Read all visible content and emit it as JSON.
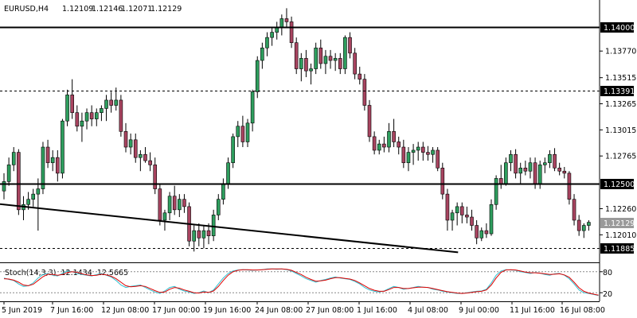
{
  "header": {
    "symbol": "EURUSD,H4",
    "open": "1.12109",
    "high": "1.12146",
    "low": "1.12071",
    "close": "1.12129"
  },
  "indicator": {
    "label": "Stoch(14,3,3)",
    "main": "12.1434",
    "signal": "12.5665",
    "levels": [
      "80",
      "20"
    ],
    "main_color": "#2fbfcf",
    "signal_color": "#e00000"
  },
  "price_scale": {
    "labels": [
      "1.13770",
      "1.13515",
      "1.13265",
      "1.13015",
      "1.12765",
      "1.12260",
      "1.12010"
    ]
  },
  "levels": {
    "solid": [
      {
        "label": "1.14000",
        "price": 1.14
      },
      {
        "label": "1.12500",
        "price": 1.125
      }
    ],
    "dashed": [
      {
        "label": "1.13391",
        "price": 1.13391
      },
      {
        "label": "1.11885",
        "price": 1.11885
      }
    ],
    "current": {
      "label": "1.12129",
      "price": 1.12129
    }
  },
  "time_axis": {
    "labels": [
      "5 Jun 2019",
      "7 Jun 16:00",
      "12 Jun 08:00",
      "17 Jun 00:00",
      "19 Jun 16:00",
      "24 Jun 08:00",
      "27 Jun 08:00",
      "1 Jul 16:00",
      "4 Jul 08:00",
      "9 Jul 00:00",
      "11 Jul 16:00",
      "16 Jul 08:00"
    ]
  },
  "colors": {
    "bull": "#2e9e5e",
    "bear": "#a84460"
  },
  "chart_data": {
    "type": "candlestick",
    "title": "EURUSD,H4",
    "ylim": [
      1.1183,
      1.1426
    ],
    "trendline": [
      [
        1.12304,
        0
      ],
      [
        1.1188,
        94
      ]
    ],
    "candles": [
      [
        1.1243,
        1.126,
        1.1235,
        1.1252
      ],
      [
        1.1252,
        1.1275,
        1.1248,
        1.1268
      ],
      [
        1.1268,
        1.1285,
        1.1262,
        1.128
      ],
      [
        1.128,
        1.1283,
        1.122,
        1.1225
      ],
      [
        1.1225,
        1.1238,
        1.1215,
        1.123
      ],
      [
        1.123,
        1.1242,
        1.1225,
        1.1235
      ],
      [
        1.1235,
        1.1245,
        1.1228,
        1.124
      ],
      [
        1.124,
        1.1255,
        1.1205,
        1.1245
      ],
      [
        1.1245,
        1.129,
        1.124,
        1.1285
      ],
      [
        1.1285,
        1.1292,
        1.1265,
        1.127
      ],
      [
        1.127,
        1.1282,
        1.1262,
        1.1275
      ],
      [
        1.1275,
        1.1282,
        1.1252,
        1.126
      ],
      [
        1.126,
        1.1312,
        1.1255,
        1.131
      ],
      [
        1.131,
        1.134,
        1.1305,
        1.1335
      ],
      [
        1.1335,
        1.135,
        1.1312,
        1.1318
      ],
      [
        1.1318,
        1.1325,
        1.13,
        1.1305
      ],
      [
        1.1305,
        1.1318,
        1.129,
        1.131
      ],
      [
        1.131,
        1.1322,
        1.1302,
        1.1318
      ],
      [
        1.1318,
        1.1325,
        1.1305,
        1.1312
      ],
      [
        1.1312,
        1.1322,
        1.1305,
        1.1318
      ],
      [
        1.1318,
        1.1325,
        1.131,
        1.1322
      ],
      [
        1.1322,
        1.1335,
        1.131,
        1.133
      ],
      [
        1.133,
        1.1338,
        1.1318,
        1.1325
      ],
      [
        1.1325,
        1.1342,
        1.132,
        1.133
      ],
      [
        1.133,
        1.1335,
        1.1295,
        1.13
      ],
      [
        1.13,
        1.1308,
        1.128,
        1.1285
      ],
      [
        1.1285,
        1.1298,
        1.1278,
        1.1292
      ],
      [
        1.1292,
        1.1298,
        1.127,
        1.1275
      ],
      [
        1.1275,
        1.1282,
        1.1262,
        1.1278
      ],
      [
        1.1278,
        1.1285,
        1.127,
        1.1272
      ],
      [
        1.1272,
        1.128,
        1.1262,
        1.1268
      ],
      [
        1.1268,
        1.1275,
        1.124,
        1.1245
      ],
      [
        1.1245,
        1.125,
        1.121,
        1.1215
      ],
      [
        1.1215,
        1.1225,
        1.1205,
        1.1222
      ],
      [
        1.1222,
        1.1242,
        1.1215,
        1.1238
      ],
      [
        1.1238,
        1.1248,
        1.122,
        1.1225
      ],
      [
        1.1225,
        1.124,
        1.1218,
        1.1235
      ],
      [
        1.1235,
        1.124,
        1.1222,
        1.1228
      ],
      [
        1.1228,
        1.1232,
        1.119,
        1.1195
      ],
      [
        1.1195,
        1.121,
        1.1185,
        1.1205
      ],
      [
        1.1205,
        1.1212,
        1.119,
        1.1198
      ],
      [
        1.1198,
        1.121,
        1.1188,
        1.1205
      ],
      [
        1.1205,
        1.1212,
        1.1192,
        1.12
      ],
      [
        1.12,
        1.1225,
        1.1195,
        1.122
      ],
      [
        1.122,
        1.124,
        1.1215,
        1.1235
      ],
      [
        1.1235,
        1.1255,
        1.123,
        1.125
      ],
      [
        1.125,
        1.1275,
        1.1245,
        1.127
      ],
      [
        1.127,
        1.1298,
        1.1265,
        1.1295
      ],
      [
        1.1295,
        1.131,
        1.1285,
        1.1305
      ],
      [
        1.1305,
        1.1315,
        1.1285,
        1.129
      ],
      [
        1.129,
        1.1312,
        1.1285,
        1.1308
      ],
      [
        1.1308,
        1.134,
        1.13,
        1.1338
      ],
      [
        1.1338,
        1.1372,
        1.1332,
        1.1368
      ],
      [
        1.1368,
        1.1385,
        1.136,
        1.138
      ],
      [
        1.138,
        1.1395,
        1.1372,
        1.139
      ],
      [
        1.139,
        1.14,
        1.1382,
        1.1395
      ],
      [
        1.1395,
        1.1405,
        1.1388,
        1.14
      ],
      [
        1.14,
        1.1412,
        1.1392,
        1.1408
      ],
      [
        1.1408,
        1.1418,
        1.14,
        1.1405
      ],
      [
        1.1405,
        1.141,
        1.138,
        1.1385
      ],
      [
        1.1385,
        1.139,
        1.1355,
        1.136
      ],
      [
        1.136,
        1.1375,
        1.1348,
        1.137
      ],
      [
        1.137,
        1.1378,
        1.1352,
        1.1358
      ],
      [
        1.1358,
        1.1365,
        1.1345,
        1.136
      ],
      [
        1.136,
        1.1385,
        1.1355,
        1.138
      ],
      [
        1.138,
        1.1388,
        1.136,
        1.1365
      ],
      [
        1.1365,
        1.1378,
        1.1355,
        1.1372
      ],
      [
        1.1372,
        1.1378,
        1.136,
        1.1368
      ],
      [
        1.1368,
        1.1375,
        1.1358,
        1.137
      ],
      [
        1.137,
        1.1375,
        1.1355,
        1.136
      ],
      [
        1.136,
        1.1392,
        1.1355,
        1.139
      ],
      [
        1.139,
        1.1395,
        1.137,
        1.1375
      ],
      [
        1.1375,
        1.138,
        1.135,
        1.1355
      ],
      [
        1.1355,
        1.1362,
        1.1345,
        1.135
      ],
      [
        1.135,
        1.1355,
        1.132,
        1.1325
      ],
      [
        1.1325,
        1.133,
        1.129,
        1.1295
      ],
      [
        1.1295,
        1.13,
        1.1278,
        1.1282
      ],
      [
        1.1282,
        1.1292,
        1.1278,
        1.1288
      ],
      [
        1.1288,
        1.1295,
        1.128,
        1.1285
      ],
      [
        1.1285,
        1.1308,
        1.128,
        1.13
      ],
      [
        1.13,
        1.1312,
        1.1285,
        1.129
      ],
      [
        1.129,
        1.1295,
        1.1278,
        1.1285
      ],
      [
        1.1285,
        1.1292,
        1.1265,
        1.127
      ],
      [
        1.127,
        1.1285,
        1.1262,
        1.128
      ],
      [
        1.128,
        1.1288,
        1.1268,
        1.1282
      ],
      [
        1.1282,
        1.129,
        1.1272,
        1.1285
      ],
      [
        1.1285,
        1.129,
        1.1272,
        1.128
      ],
      [
        1.128,
        1.1286,
        1.1272,
        1.1278
      ],
      [
        1.1278,
        1.1285,
        1.127,
        1.1282
      ],
      [
        1.1282,
        1.1285,
        1.1262,
        1.1265
      ],
      [
        1.1265,
        1.127,
        1.1235,
        1.124
      ],
      [
        1.124,
        1.1245,
        1.1205,
        1.1215
      ],
      [
        1.1215,
        1.1225,
        1.1205,
        1.1222
      ],
      [
        1.1222,
        1.1232,
        1.121,
        1.1228
      ],
      [
        1.1228,
        1.1232,
        1.1212,
        1.122
      ],
      [
        1.122,
        1.1228,
        1.1212,
        1.1218
      ],
      [
        1.1218,
        1.1225,
        1.1205,
        1.121
      ],
      [
        1.121,
        1.1215,
        1.1192,
        1.1198
      ],
      [
        1.1198,
        1.1208,
        1.1195,
        1.1205
      ],
      [
        1.1205,
        1.1212,
        1.1198,
        1.1202
      ],
      [
        1.1202,
        1.1235,
        1.12,
        1.123
      ],
      [
        1.123,
        1.1258,
        1.1225,
        1.1255
      ],
      [
        1.1255,
        1.1268,
        1.1245,
        1.125
      ],
      [
        1.125,
        1.1275,
        1.1248,
        1.127
      ],
      [
        1.127,
        1.1282,
        1.1262,
        1.1278
      ],
      [
        1.1278,
        1.1283,
        1.1255,
        1.126
      ],
      [
        1.126,
        1.127,
        1.125,
        1.1265
      ],
      [
        1.1265,
        1.1272,
        1.1258,
        1.1262
      ],
      [
        1.1262,
        1.1275,
        1.1255,
        1.127
      ],
      [
        1.127,
        1.1275,
        1.1245,
        1.125
      ],
      [
        1.125,
        1.1272,
        1.1245,
        1.1268
      ],
      [
        1.1268,
        1.1275,
        1.126,
        1.127
      ],
      [
        1.127,
        1.1282,
        1.1265,
        1.1278
      ],
      [
        1.1278,
        1.1284,
        1.1262,
        1.1265
      ],
      [
        1.1265,
        1.127,
        1.1258,
        1.1262
      ],
      [
        1.1262,
        1.1266,
        1.1255,
        1.126
      ],
      [
        1.126,
        1.1262,
        1.123,
        1.1235
      ],
      [
        1.1235,
        1.124,
        1.121,
        1.1215
      ],
      [
        1.1215,
        1.122,
        1.12,
        1.1205
      ],
      [
        1.1205,
        1.1212,
        1.1198,
        1.121
      ],
      [
        1.121,
        1.1215,
        1.1205,
        1.1213
      ]
    ],
    "stochastic": {
      "main": [
        62,
        58,
        55,
        45,
        38,
        40,
        48,
        62,
        72,
        75,
        70,
        68,
        75,
        82,
        80,
        75,
        72,
        70,
        68,
        72,
        75,
        70,
        65,
        55,
        42,
        35,
        38,
        40,
        42,
        35,
        28,
        22,
        18,
        25,
        35,
        38,
        30,
        25,
        22,
        18,
        20,
        25,
        20,
        28,
        45,
        62,
        75,
        82,
        85,
        86,
        85,
        84,
        85,
        86,
        88,
        88,
        87,
        88,
        86,
        82,
        75,
        68,
        60,
        55,
        50,
        55,
        58,
        62,
        65,
        62,
        60,
        58,
        52,
        45,
        35,
        28,
        24,
        22,
        25,
        32,
        38,
        35,
        30,
        32,
        35,
        38,
        36,
        35,
        30,
        28,
        24,
        22,
        20,
        18,
        18,
        20,
        22,
        24,
        25,
        30,
        48,
        70,
        82,
        86,
        85,
        84,
        80,
        78,
        75,
        78,
        76,
        72,
        70,
        74,
        75,
        70,
        60,
        45,
        28,
        20,
        18,
        15,
        12
      ],
      "signal": [
        60,
        59,
        56,
        50,
        42,
        40,
        44,
        55,
        66,
        73,
        72,
        70,
        72,
        78,
        80,
        78,
        74,
        71,
        69,
        70,
        73,
        71,
        67,
        60,
        50,
        40,
        37,
        38,
        40,
        38,
        32,
        26,
        21,
        22,
        30,
        35,
        33,
        28,
        24,
        20,
        19,
        22,
        21,
        25,
        38,
        55,
        70,
        80,
        84,
        86,
        86,
        85,
        85,
        86,
        87,
        88,
        88,
        88,
        87,
        84,
        78,
        72,
        64,
        58,
        53,
        54,
        56,
        60,
        63,
        63,
        61,
        59,
        55,
        48,
        40,
        32,
        27,
        24,
        24,
        29,
        35,
        35,
        32,
        32,
        34,
        36,
        36,
        35,
        32,
        29,
        26,
        23,
        21,
        19,
        18,
        19,
        21,
        23,
        24,
        28,
        42,
        62,
        78,
        85,
        86,
        85,
        82,
        79,
        77,
        77,
        76,
        74,
        72,
        73,
        74,
        71,
        64,
        50,
        34,
        24,
        19,
        16,
        13
      ]
    }
  }
}
